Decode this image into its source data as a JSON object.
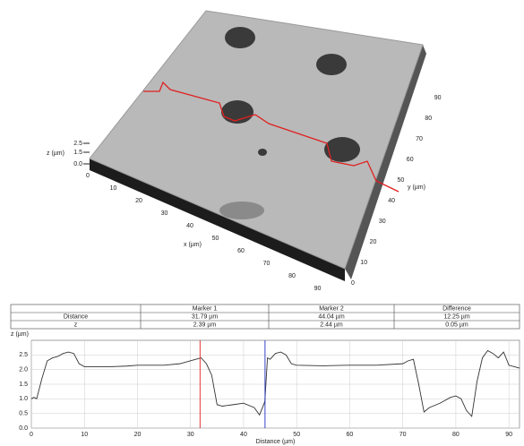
{
  "surface": {
    "x_label": "x (µm)",
    "y_label": "y (µm)",
    "z_label": "z (µm)",
    "xticks": [
      "0",
      "10",
      "20",
      "30",
      "40",
      "50",
      "60",
      "70",
      "80",
      "90"
    ],
    "yticks": [
      "0",
      "10",
      "20",
      "30",
      "40",
      "50",
      "60",
      "70",
      "80",
      "90"
    ],
    "zticks": [
      "0.0",
      "1.5",
      "2.5"
    ]
  },
  "table": {
    "header": [
      "Marker 1",
      "Marker 2",
      "Difference"
    ],
    "rows": [
      [
        "Distance",
        "31.79 µm",
        "44.04 µm",
        "12.25 µm"
      ],
      [
        "z",
        "2.39 µm",
        "2.44 µm",
        "0.05 µm"
      ]
    ]
  },
  "chart_data": {
    "type": "line",
    "x_label": "Distance (µm)",
    "y_label": "z (µm)",
    "color": "#333333",
    "x": [
      0,
      0.5,
      1,
      2,
      3,
      4,
      5,
      6,
      7,
      8,
      9,
      10,
      12,
      15,
      18,
      20,
      22,
      25,
      28,
      30,
      31,
      32,
      33,
      34,
      35,
      36,
      38,
      40,
      42,
      43,
      44,
      44.5,
      45,
      46,
      47,
      48,
      49,
      50,
      55,
      60,
      65,
      70,
      71,
      72,
      73,
      74,
      75,
      77,
      79,
      80,
      81,
      82,
      83,
      84,
      85,
      86,
      87,
      88,
      89,
      90,
      91,
      92
    ],
    "values": [
      1.0,
      1.05,
      1.0,
      1.7,
      2.3,
      2.4,
      2.45,
      2.55,
      2.6,
      2.55,
      2.2,
      2.1,
      2.1,
      2.1,
      2.12,
      2.15,
      2.15,
      2.15,
      2.2,
      2.3,
      2.35,
      2.4,
      2.2,
      1.8,
      0.8,
      0.75,
      0.8,
      0.85,
      0.7,
      0.45,
      0.9,
      2.4,
      2.35,
      2.55,
      2.6,
      2.5,
      2.2,
      2.15,
      2.13,
      2.15,
      2.15,
      2.2,
      2.3,
      2.35,
      1.5,
      0.55,
      0.7,
      0.85,
      1.05,
      1.1,
      1.0,
      0.6,
      0.4,
      1.6,
      2.4,
      2.65,
      2.55,
      2.4,
      2.6,
      2.15,
      2.1,
      2.05
    ],
    "markers": [
      {
        "x": 31.79,
        "color": "#e02020"
      },
      {
        "x": 44.04,
        "color": "#2030c0"
      }
    ],
    "xlim": [
      0,
      92
    ],
    "ylim": [
      0,
      3
    ],
    "xticks": [
      0,
      10,
      20,
      30,
      40,
      50,
      60,
      70,
      80,
      90
    ],
    "yticks": [
      {
        "value": 0,
        "label": "0.0"
      },
      {
        "value": 0.5,
        "label": "0.5"
      },
      {
        "value": 1,
        "label": "1.0"
      },
      {
        "value": 1.5,
        "label": "1.5"
      },
      {
        "value": 2,
        "label": "2.0"
      },
      {
        "value": 2.5,
        "label": "2.5"
      }
    ],
    "grid": true
  }
}
